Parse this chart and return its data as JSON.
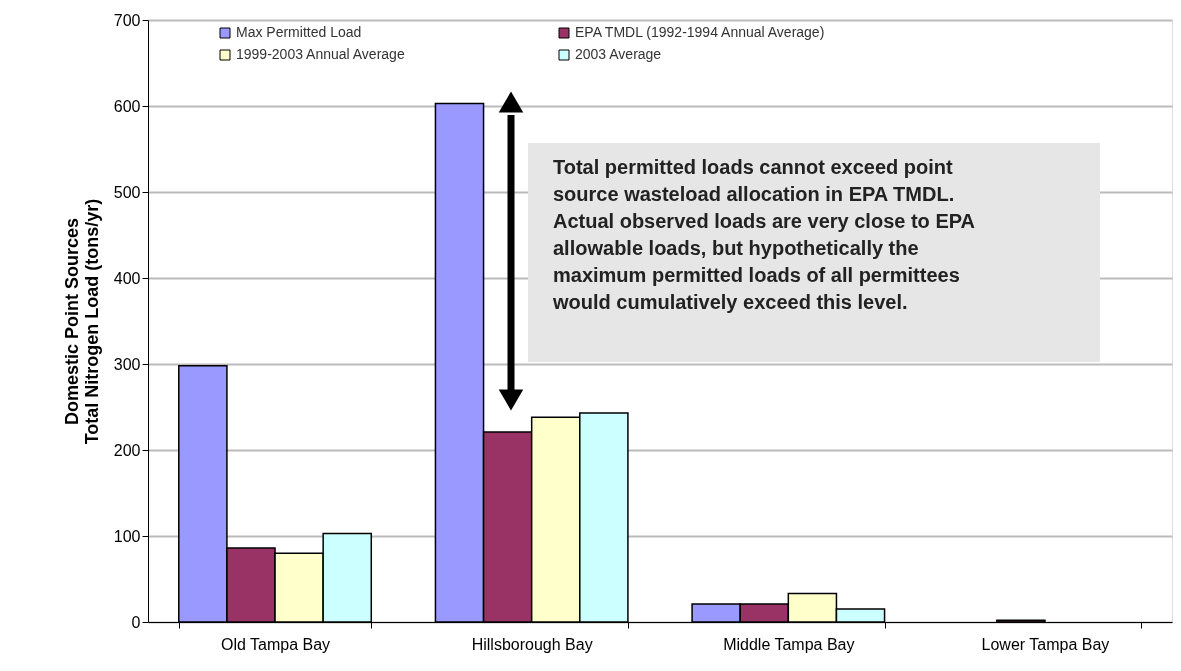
{
  "chart_data": {
    "type": "bar",
    "categories": [
      "Old Tampa Bay",
      "Hillsborough Bay",
      "Middle Tampa Bay",
      "Lower Tampa Bay"
    ],
    "series": [
      {
        "name": "Max Permitted Load",
        "color": "#9999ff",
        "values": [
          298,
          603,
          21,
          null
        ]
      },
      {
        "name": "EPA TMDL (1992-1994 Annual Average)",
        "color": "#993366",
        "values": [
          86,
          221,
          21,
          2
        ]
      },
      {
        "name": "1999-2003 Annual Average",
        "color": "#ffffcc",
        "values": [
          80,
          238,
          33,
          null
        ]
      },
      {
        "name": "2003 Average",
        "color": "#ccffff",
        "values": [
          103,
          243,
          15,
          null
        ]
      }
    ],
    "ylabel": "Domestic Point Sources\nTotal Nitrogen Load (tons/yr)",
    "ylim": [
      0,
      700
    ],
    "yticks": [
      0,
      100,
      200,
      300,
      400,
      500,
      600,
      700
    ],
    "grid": "y",
    "legend": "top",
    "annotations": [
      "Total permitted loads cannot exceed point\nsource wasteload allocation in EPA TMDL.\nActual observed loads are very close to EPA\nallowable loads, but hypothetically the\nmaximum permitted loads of all permittees\nwould cumulatively exceed this level."
    ]
  }
}
